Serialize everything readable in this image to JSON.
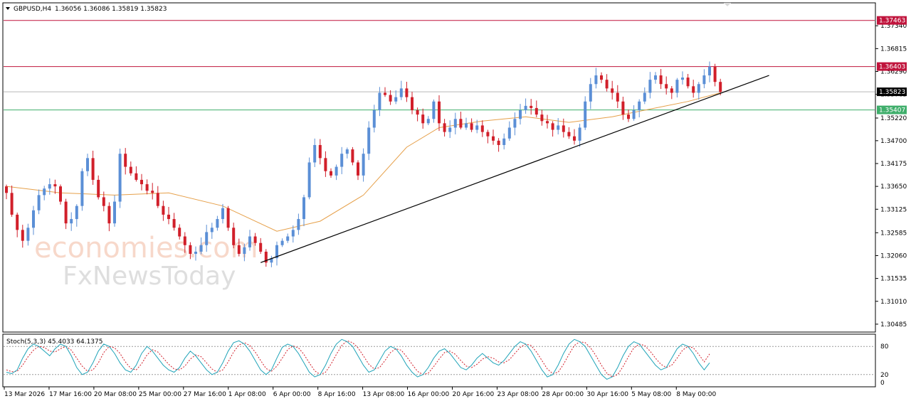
{
  "header": {
    "symbol": "GBPUSD,H4",
    "ohlc": "1.36056 1.36086 1.35819 1.35823"
  },
  "watermark": {
    "line1": "economies.com",
    "line2": "FxNewsToday"
  },
  "colors": {
    "bull": "#5b8fd6",
    "bear": "#d11f2a",
    "ma": "#e6a04a",
    "resistance": "#c0143c",
    "support": "#3fae6b",
    "current": "#000000",
    "stoch_main": "#1fa3b8",
    "stoch_signal": "#d11f2a"
  },
  "chart_data": [
    {
      "type": "candlestick",
      "title": "GBPUSD,H4",
      "ylim": [
        1.3032,
        1.3785
      ],
      "y_ticks": [
        "1.37340",
        "1.36815",
        "1.36290",
        "1.35765",
        "1.35220",
        "1.34700",
        "1.34175",
        "1.33650",
        "1.33125",
        "1.32585",
        "1.32060",
        "1.31535",
        "1.31010",
        "1.30485"
      ],
      "x_ticks": [
        "13 Mar 2026",
        "17 Mar 16:00",
        "20 Mar 08:00",
        "25 Mar 00:00",
        "27 Mar 16:00",
        "1 Apr 08:00",
        "6 Apr 00:00",
        "8 Apr 16:00",
        "13 Apr 08:00",
        "16 Apr 00:00",
        "20 Apr 16:00",
        "23 Apr 08:00",
        "28 Apr 00:00",
        "30 Apr 16:00",
        "5 May 08:00",
        "8 May 00:00"
      ],
      "close_series": [
        1.335,
        1.33,
        1.3265,
        1.324,
        1.327,
        1.331,
        1.3345,
        1.336,
        1.337,
        1.3365,
        1.333,
        1.328,
        1.329,
        1.332,
        1.34,
        1.343,
        1.338,
        1.334,
        1.332,
        1.328,
        1.333,
        1.344,
        1.341,
        1.3395,
        1.338,
        1.337,
        1.3355,
        1.335,
        1.332,
        1.33,
        1.329,
        1.327,
        1.325,
        1.323,
        1.321,
        1.3215,
        1.323,
        1.326,
        1.327,
        1.329,
        1.3315,
        1.327,
        1.323,
        1.321,
        1.3225,
        1.325,
        1.3235,
        1.3215,
        1.319,
        1.32,
        1.323,
        1.324,
        1.325,
        1.3265,
        1.329,
        1.334,
        1.342,
        1.346,
        1.343,
        1.34,
        1.339,
        1.341,
        1.344,
        1.345,
        1.342,
        1.339,
        1.344,
        1.35,
        1.354,
        1.358,
        1.3575,
        1.356,
        1.357,
        1.359,
        1.357,
        1.354,
        1.353,
        1.351,
        1.352,
        1.356,
        1.351,
        1.349,
        1.35,
        1.352,
        1.35,
        1.351,
        1.3495,
        1.3505,
        1.349,
        1.348,
        1.347,
        1.346,
        1.3475,
        1.35,
        1.352,
        1.354,
        1.355,
        1.3545,
        1.353,
        1.3515,
        1.351,
        1.3495,
        1.3505,
        1.349,
        1.348,
        1.347,
        1.35,
        1.356,
        1.36,
        1.362,
        1.361,
        1.359,
        1.358,
        1.356,
        1.353,
        1.352,
        1.354,
        1.356,
        1.358,
        1.361,
        1.362,
        1.36,
        1.359,
        1.358,
        1.361,
        1.3615,
        1.3595,
        1.358,
        1.36,
        1.362,
        1.364,
        1.3605,
        1.3582
      ],
      "moving_average": {
        "points": [
          [
            0,
            1.3365
          ],
          [
            10,
            1.335
          ],
          [
            20,
            1.3345
          ],
          [
            30,
            1.335
          ],
          [
            40,
            1.332
          ],
          [
            50,
            1.3262
          ],
          [
            58,
            1.3285
          ],
          [
            66,
            1.3345
          ],
          [
            74,
            1.3455
          ],
          [
            80,
            1.35
          ],
          [
            88,
            1.3515
          ],
          [
            96,
            1.3525
          ],
          [
            104,
            1.3512
          ],
          [
            112,
            1.3525
          ],
          [
            120,
            1.3545
          ],
          [
            126,
            1.356
          ],
          [
            132,
            1.358
          ]
        ]
      },
      "horizontal_lines": [
        {
          "name": "resistance-2",
          "value": 1.37463,
          "label": "1.37463"
        },
        {
          "name": "resistance-1",
          "value": 1.36403,
          "label": "1.36403"
        },
        {
          "name": "current",
          "value": 1.35823,
          "label": "1.35823"
        },
        {
          "name": "support",
          "value": 1.35407,
          "label": "1.35407"
        }
      ],
      "trendline": {
        "from": [
          47,
          1.319
        ],
        "to": [
          141,
          1.362
        ]
      }
    },
    {
      "type": "line",
      "title": "Stoch(5,3,3) 45.4033 64.1375",
      "ylim": [
        0,
        100
      ],
      "y_ticks": [
        "80",
        "20",
        "0"
      ],
      "levels": [
        80,
        20
      ],
      "main": [
        25,
        22,
        30,
        55,
        75,
        85,
        80,
        70,
        60,
        75,
        85,
        80,
        60,
        35,
        20,
        25,
        45,
        70,
        85,
        80,
        65,
        45,
        30,
        25,
        40,
        65,
        80,
        70,
        55,
        40,
        30,
        25,
        35,
        55,
        70,
        60,
        45,
        30,
        20,
        25,
        45,
        70,
        88,
        92,
        85,
        70,
        50,
        30,
        20,
        30,
        55,
        78,
        85,
        80,
        65,
        45,
        25,
        15,
        20,
        40,
        65,
        85,
        95,
        90,
        80,
        60,
        40,
        25,
        30,
        50,
        70,
        80,
        75,
        60,
        40,
        25,
        15,
        20,
        35,
        55,
        70,
        75,
        65,
        50,
        35,
        30,
        40,
        55,
        65,
        55,
        45,
        40,
        50,
        65,
        80,
        90,
        85,
        70,
        50,
        30,
        15,
        20,
        40,
        65,
        85,
        95,
        90,
        80,
        60,
        40,
        20,
        10,
        15,
        35,
        60,
        80,
        90,
        85,
        70,
        55,
        40,
        30,
        35,
        55,
        75,
        85,
        80,
        65,
        45,
        30,
        45
      ],
      "signal": [
        30,
        26,
        27,
        40,
        58,
        72,
        80,
        78,
        70,
        68,
        75,
        80,
        72,
        55,
        38,
        27,
        30,
        45,
        67,
        80,
        77,
        65,
        47,
        33,
        30,
        43,
        62,
        73,
        68,
        55,
        42,
        32,
        30,
        38,
        53,
        62,
        58,
        45,
        32,
        25,
        30,
        47,
        68,
        83,
        88,
        82,
        68,
        50,
        33,
        27,
        38,
        55,
        73,
        81,
        77,
        63,
        45,
        28,
        20,
        25,
        42,
        63,
        82,
        92,
        88,
        77,
        60,
        42,
        32,
        35,
        50,
        67,
        75,
        72,
        58,
        42,
        27,
        20,
        23,
        37,
        53,
        67,
        70,
        63,
        50,
        38,
        35,
        42,
        53,
        58,
        55,
        47,
        45,
        52,
        65,
        78,
        85,
        82,
        68,
        50,
        32,
        22,
        25,
        42,
        63,
        82,
        90,
        88,
        77,
        60,
        40,
        23,
        15,
        20,
        37,
        58,
        77,
        85,
        82,
        70,
        55,
        42,
        35,
        40,
        55,
        72,
        80,
        77,
        63,
        47,
        64
      ]
    }
  ]
}
